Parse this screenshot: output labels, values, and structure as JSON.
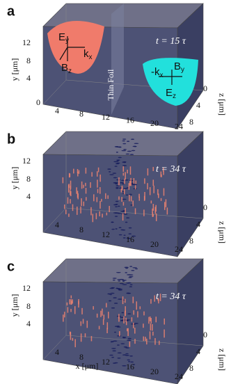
{
  "panels": [
    {
      "label": "a",
      "time": "t = 15 τ",
      "y_label": "y [μm]",
      "z_label": "z [μm]",
      "y_ticks": [
        "12",
        "8",
        "4",
        "0"
      ],
      "x_ticks": [
        "4",
        "8",
        "12",
        "16",
        "20",
        "24"
      ],
      "z_ticks": [
        "0",
        "4",
        "8"
      ],
      "foil_label": "Thin Foil",
      "left_fields": [
        {
          "base": "E",
          "sub": "y"
        },
        {
          "base": "k",
          "sub": "x"
        },
        {
          "base": "B",
          "sub": "z"
        }
      ],
      "right_fields": [
        {
          "base": "-k",
          "sub": "x"
        },
        {
          "base": "B",
          "sub": "y"
        },
        {
          "base": "E",
          "sub": "z"
        }
      ]
    },
    {
      "label": "b",
      "time": "t = 34 τ",
      "y_label": "y [μm]",
      "z_label": "z [μm]",
      "y_ticks": [
        "12",
        "8",
        "4"
      ],
      "x_ticks": [
        "4",
        "8",
        "12",
        "16",
        "20",
        "24"
      ],
      "z_ticks": [
        "0",
        "4",
        "8"
      ]
    },
    {
      "label": "c",
      "time": "t = 34 τ",
      "y_label": "y [μm]",
      "z_label": "z [μm]",
      "y_ticks": [
        "12",
        "8",
        "4"
      ],
      "x_ticks": [
        "4",
        "8",
        "12",
        "16",
        "20",
        "24"
      ],
      "z_ticks": [
        "0",
        "4",
        "8"
      ],
      "x_label": "x [μm]"
    }
  ]
}
